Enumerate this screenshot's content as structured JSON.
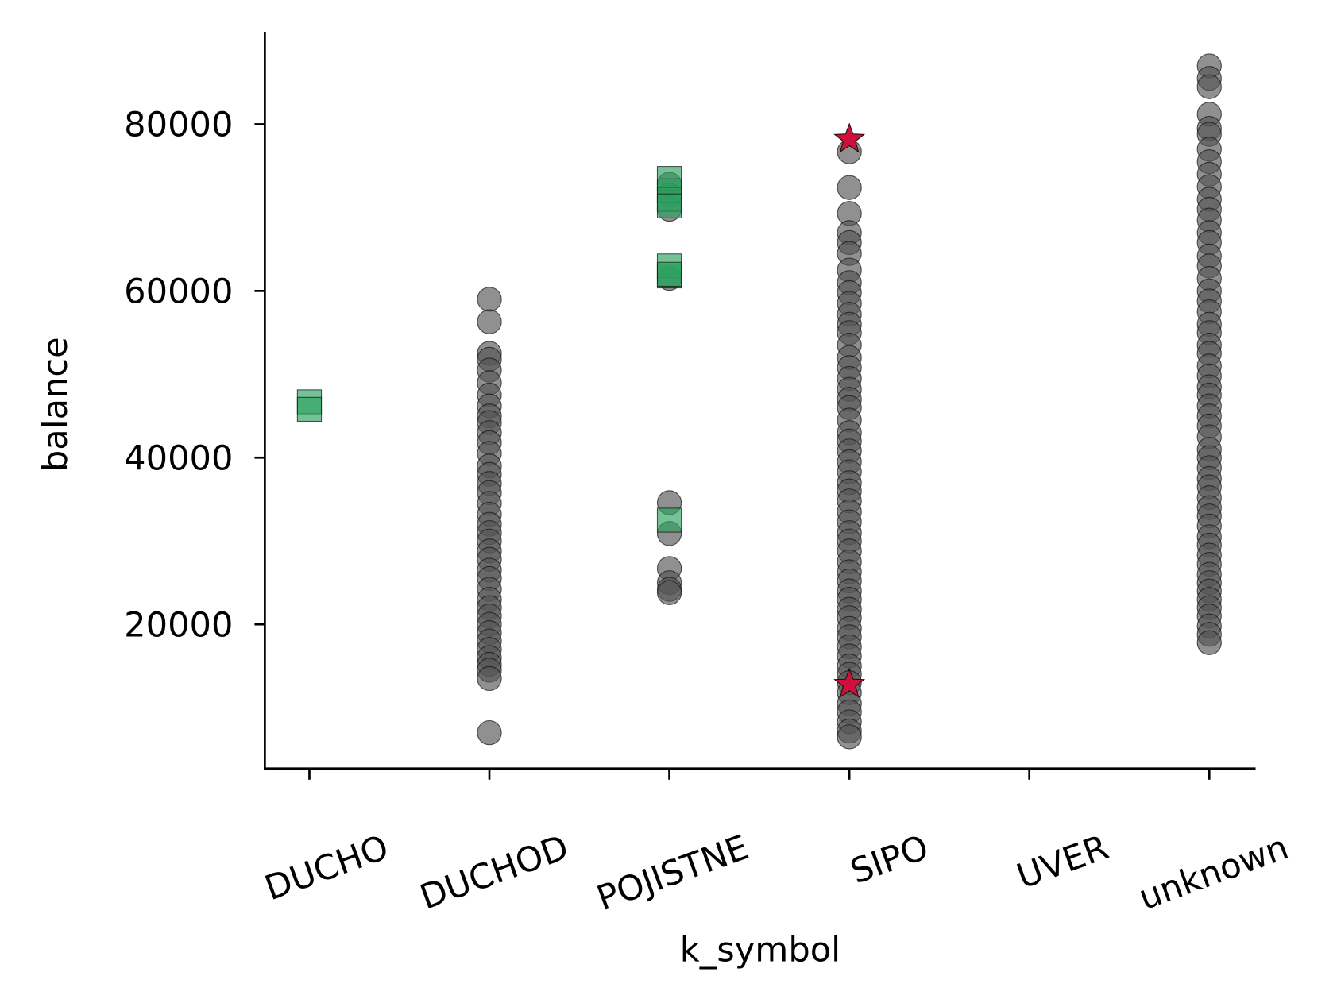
{
  "chart_data": {
    "type": "strip",
    "x_label": "k_symbol",
    "y_label": "balance",
    "categories": [
      "DUCHO",
      "DUCHOD",
      "POJISTNE",
      "SIPO",
      "UVER",
      "unknown"
    ],
    "ylim": [
      2700,
      91100
    ],
    "yticks": [
      20000,
      40000,
      60000,
      80000
    ],
    "grid": false,
    "series": [
      {
        "color": "#555555",
        "marker": "circle",
        "values": [
          [],
          [
            59000,
            56300,
            52500,
            51800,
            50500,
            49000,
            47500,
            46200,
            45000,
            44200,
            43000,
            41800,
            40500,
            39000,
            38000,
            36900,
            35800,
            34500,
            33200,
            32000,
            31000,
            30000,
            28800,
            27800,
            26500,
            25500,
            24200,
            23000,
            22000,
            21000,
            20000,
            19000,
            18000,
            17000,
            16000,
            15200,
            14500,
            13500,
            7000
          ],
          [
            72800,
            71500,
            69800,
            61500,
            34600,
            30900,
            26700,
            25000,
            24200,
            23800
          ],
          [
            76700,
            72400,
            69300,
            67000,
            65800,
            64500,
            62500,
            61000,
            59800,
            58500,
            57200,
            56000,
            55000,
            53500,
            52000,
            50800,
            49500,
            48200,
            47000,
            46000,
            44500,
            43000,
            42000,
            40800,
            39500,
            38300,
            37000,
            36000,
            34800,
            33500,
            32300,
            31000,
            30000,
            28800,
            27500,
            26300,
            25200,
            24000,
            23000,
            21800,
            20800,
            19500,
            18500,
            17300,
            16200,
            15000,
            14000,
            13000,
            11800,
            10500,
            9500,
            8300,
            7200,
            6500
          ],
          [],
          [
            87000,
            85500,
            84500,
            81200,
            79500,
            78800,
            77000,
            75500,
            74000,
            72500,
            71000,
            69800,
            68500,
            67000,
            65800,
            64200,
            63000,
            61500,
            60000,
            58800,
            57500,
            56000,
            55000,
            53500,
            52500,
            51000,
            49800,
            48500,
            47500,
            46200,
            45000,
            43800,
            42500,
            41000,
            40000,
            38800,
            37500,
            36500,
            35200,
            34000,
            33000,
            31800,
            30500,
            29500,
            28300,
            27200,
            26000,
            25000,
            24000,
            23000,
            22000,
            21000,
            19800,
            18800,
            17800
          ]
        ]
      },
      {
        "color": "#2ca25f",
        "marker": "square",
        "values": [
          [
            46700,
            45800
          ],
          [],
          [
            73500,
            72000,
            71000,
            70200,
            63000,
            61800,
            62000,
            32500
          ],
          [],
          [],
          []
        ]
      },
      {
        "color": "#d0103a",
        "marker": "star",
        "values": [
          [],
          [],
          [],
          [
            78200,
            12800
          ],
          [],
          []
        ]
      }
    ]
  }
}
